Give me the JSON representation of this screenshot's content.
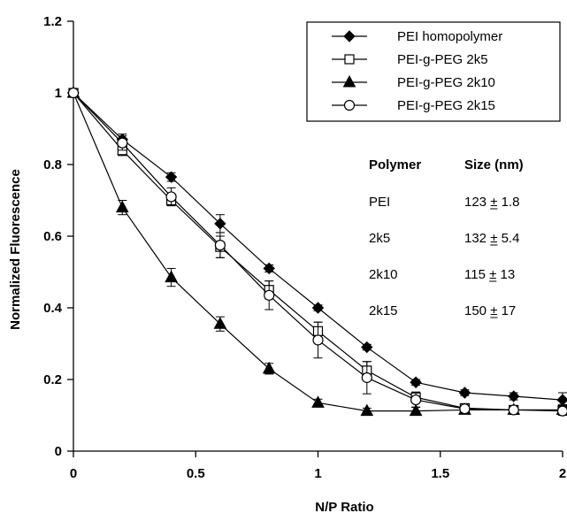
{
  "chart_data": {
    "type": "line",
    "xlabel": "N/P Ratio",
    "ylabel": "Normalized Fluorescence",
    "xlim": [
      0,
      2
    ],
    "ylim": [
      0,
      1.2
    ],
    "x_ticks": [
      0,
      0.5,
      1,
      1.5,
      2
    ],
    "x_tick_labels": [
      "0",
      "0.5",
      "1",
      "1.5",
      "2"
    ],
    "y_ticks": [
      0,
      0.2,
      0.4,
      0.6,
      0.8,
      1,
      1.2
    ],
    "y_tick_labels": [
      "0",
      "0.2",
      "0.4",
      "0.6",
      "0.8",
      "1",
      "1.2"
    ],
    "grid": false,
    "legend_position": "top-right",
    "x": [
      0,
      0.2,
      0.4,
      0.6,
      0.8,
      1.0,
      1.2,
      1.4,
      1.6,
      1.8,
      2.0
    ],
    "series": [
      {
        "name": "PEI homopolymer",
        "marker": "filled-diamond",
        "values": [
          1.0,
          0.87,
          0.765,
          0.635,
          0.51,
          0.4,
          0.29,
          0.192,
          0.163,
          0.153,
          0.143
        ],
        "errors": [
          0.0,
          0.015,
          0.012,
          0.025,
          0.01,
          0.008,
          0.008,
          0.008,
          0.008,
          0.01,
          0.02
        ]
      },
      {
        "name": "PEI-g-PEG 2k5",
        "marker": "open-square",
        "values": [
          1.0,
          0.84,
          0.7,
          0.57,
          0.45,
          0.335,
          0.225,
          0.15,
          0.12,
          0.115,
          0.115
        ],
        "errors": [
          0.0,
          0.015,
          0.015,
          0.03,
          0.025,
          0.025,
          0.025,
          0.015,
          0.01,
          0.012,
          0.015
        ]
      },
      {
        "name": "PEI-g-PEG 2k10",
        "marker": "filled-triangle",
        "values": [
          1.0,
          0.68,
          0.485,
          0.355,
          0.23,
          0.135,
          0.112,
          0.112,
          0.115,
          0.115,
          0.115
        ],
        "errors": [
          0.0,
          0.02,
          0.025,
          0.02,
          0.015,
          0.01,
          0.008,
          0.01,
          0.01,
          0.01,
          0.01
        ]
      },
      {
        "name": "PEI-g-PEG 2k15",
        "marker": "open-circle",
        "values": [
          1.0,
          0.86,
          0.71,
          0.575,
          0.435,
          0.31,
          0.205,
          0.143,
          0.118,
          0.115,
          0.112
        ],
        "errors": [
          0.0,
          0.02,
          0.025,
          0.035,
          0.04,
          0.05,
          0.045,
          0.02,
          0.01,
          0.01,
          0.01
        ]
      }
    ],
    "inset_table": {
      "headers": [
        "Polymer",
        "Size (nm)"
      ],
      "rows": [
        [
          "PEI",
          "123 ± 1.8"
        ],
        [
          "2k5",
          "132 ± 5.4"
        ],
        [
          "2k10",
          "115 ± 13"
        ],
        [
          "2k15",
          "150 ± 17"
        ]
      ]
    }
  }
}
